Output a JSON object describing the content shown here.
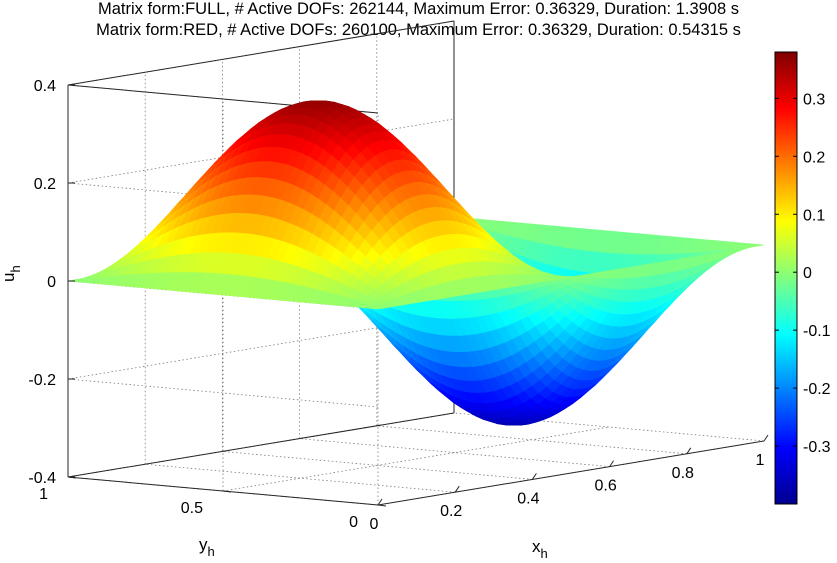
{
  "chart_data": {
    "type": "surface",
    "title_lines": [
      "Matrix form:FULL, # Active DOFs: 262144, Maximum Error: 0.36329, Duration: 1.3908 s",
      "Matrix form:RED, # Active DOFs: 260100, Maximum Error: 0.36329, Duration: 0.54315 s"
    ],
    "xlabel": "x",
    "xlabel_sub": "h",
    "ylabel": "y",
    "ylabel_sub": "h",
    "zlabel": "u",
    "zlabel_sub": "h",
    "x_ticks": [
      "0",
      "0.2",
      "0.4",
      "0.6",
      "0.8",
      "1"
    ],
    "y_ticks": [
      "0",
      "0.5",
      "1"
    ],
    "z_ticks": [
      "-0.4",
      "-0.2",
      "0",
      "0.2",
      "0.4"
    ],
    "colorbar_ticks": [
      "-0.3",
      "-0.2",
      "-0.1",
      "0",
      "0.1",
      "0.2",
      "0.3"
    ],
    "xlim": [
      0,
      1
    ],
    "ylim": [
      0,
      1
    ],
    "zlim": [
      -0.4,
      0.4
    ],
    "clim": [
      -0.4,
      0.38
    ],
    "grid": true,
    "colormap": "jet",
    "surface_function": "u(x,y) = 0.36329 * sin(2*pi*x) * sin(pi*y)",
    "max_abs_value": 0.36329
  }
}
